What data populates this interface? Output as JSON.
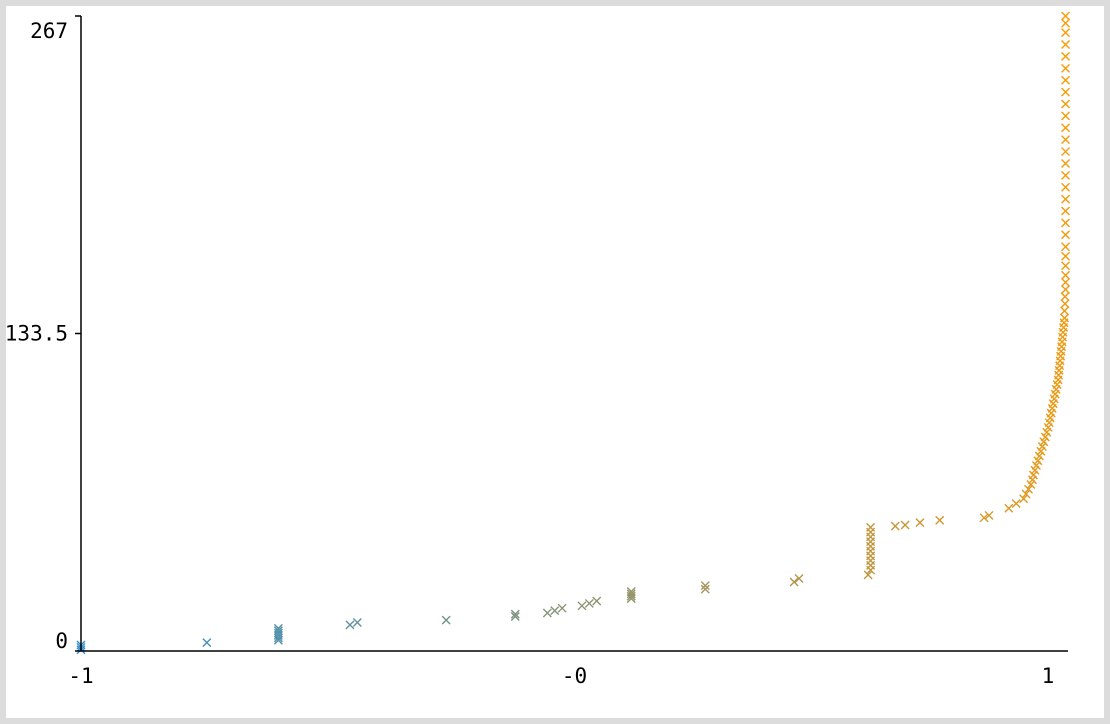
{
  "chart_data": {
    "type": "scatter",
    "title": "",
    "xlabel": "",
    "ylabel": "",
    "xlim": [
      -1,
      1
    ],
    "ylim": [
      0,
      267
    ],
    "x_ticks": [
      {
        "value": -1,
        "label": "-1"
      },
      {
        "value": 0,
        "label": "-0"
      },
      {
        "value": 1,
        "label": "1"
      }
    ],
    "y_ticks": [
      {
        "value": 0,
        "label": "0"
      },
      {
        "value": 133.5,
        "label": "133.5"
      },
      {
        "value": 267,
        "label": "267"
      }
    ],
    "grid": false,
    "legend": "none",
    "marker": "x",
    "color_start": "#2f8fcf",
    "color_end": "#ff9a00",
    "axis_color": "#000000",
    "points": [
      {
        "x": -1.0,
        "y": 0.5
      },
      {
        "x": -1.0,
        "y": 1.5
      },
      {
        "x": -1.0,
        "y": 2.5
      },
      {
        "x": -0.745,
        "y": 3.5
      },
      {
        "x": -0.6,
        "y": 4.5
      },
      {
        "x": -0.6,
        "y": 5.5
      },
      {
        "x": -0.6,
        "y": 6.5
      },
      {
        "x": -0.6,
        "y": 7.5
      },
      {
        "x": -0.6,
        "y": 8.5
      },
      {
        "x": -0.6,
        "y": 9.5
      },
      {
        "x": -0.455,
        "y": 11
      },
      {
        "x": -0.44,
        "y": 12
      },
      {
        "x": -0.26,
        "y": 13
      },
      {
        "x": -0.12,
        "y": 14.5
      },
      {
        "x": -0.12,
        "y": 15.5
      },
      {
        "x": -0.055,
        "y": 16
      },
      {
        "x": -0.04,
        "y": 17
      },
      {
        "x": -0.025,
        "y": 18
      },
      {
        "x": 0.015,
        "y": 19
      },
      {
        "x": 0.03,
        "y": 20
      },
      {
        "x": 0.045,
        "y": 21
      },
      {
        "x": 0.115,
        "y": 22
      },
      {
        "x": 0.115,
        "y": 23
      },
      {
        "x": 0.115,
        "y": 24
      },
      {
        "x": 0.115,
        "y": 25
      },
      {
        "x": 0.265,
        "y": 26
      },
      {
        "x": 0.265,
        "y": 27.5
      },
      {
        "x": 0.445,
        "y": 29
      },
      {
        "x": 0.455,
        "y": 30.5
      },
      {
        "x": 0.595,
        "y": 32
      },
      {
        "x": 0.6,
        "y": 34
      },
      {
        "x": 0.6,
        "y": 36
      },
      {
        "x": 0.6,
        "y": 38
      },
      {
        "x": 0.6,
        "y": 40
      },
      {
        "x": 0.6,
        "y": 42
      },
      {
        "x": 0.6,
        "y": 44
      },
      {
        "x": 0.6,
        "y": 46
      },
      {
        "x": 0.6,
        "y": 48
      },
      {
        "x": 0.6,
        "y": 50
      },
      {
        "x": 0.6,
        "y": 52
      },
      {
        "x": 0.65,
        "y": 52.5
      },
      {
        "x": 0.67,
        "y": 53
      },
      {
        "x": 0.7,
        "y": 54
      },
      {
        "x": 0.74,
        "y": 55
      },
      {
        "x": 0.83,
        "y": 56
      },
      {
        "x": 0.84,
        "y": 57
      },
      {
        "x": 0.88,
        "y": 60
      },
      {
        "x": 0.895,
        "y": 62
      },
      {
        "x": 0.91,
        "y": 64
      },
      {
        "x": 0.915,
        "y": 66
      },
      {
        "x": 0.92,
        "y": 68
      },
      {
        "x": 0.925,
        "y": 70
      },
      {
        "x": 0.928,
        "y": 72
      },
      {
        "x": 0.93,
        "y": 74
      },
      {
        "x": 0.933,
        "y": 76
      },
      {
        "x": 0.936,
        "y": 78
      },
      {
        "x": 0.939,
        "y": 80
      },
      {
        "x": 0.942,
        "y": 82
      },
      {
        "x": 0.945,
        "y": 84
      },
      {
        "x": 0.948,
        "y": 86
      },
      {
        "x": 0.951,
        "y": 88
      },
      {
        "x": 0.954,
        "y": 90
      },
      {
        "x": 0.957,
        "y": 92
      },
      {
        "x": 0.96,
        "y": 94
      },
      {
        "x": 0.962,
        "y": 96
      },
      {
        "x": 0.964,
        "y": 98
      },
      {
        "x": 0.966,
        "y": 100
      },
      {
        "x": 0.968,
        "y": 102
      },
      {
        "x": 0.97,
        "y": 104
      },
      {
        "x": 0.972,
        "y": 106
      },
      {
        "x": 0.974,
        "y": 108
      },
      {
        "x": 0.976,
        "y": 110
      },
      {
        "x": 0.978,
        "y": 112
      },
      {
        "x": 0.98,
        "y": 114
      },
      {
        "x": 0.981,
        "y": 116
      },
      {
        "x": 0.982,
        "y": 118
      },
      {
        "x": 0.983,
        "y": 120
      },
      {
        "x": 0.984,
        "y": 122
      },
      {
        "x": 0.985,
        "y": 124
      },
      {
        "x": 0.986,
        "y": 126
      },
      {
        "x": 0.987,
        "y": 128
      },
      {
        "x": 0.988,
        "y": 130
      },
      {
        "x": 0.989,
        "y": 132
      },
      {
        "x": 0.99,
        "y": 134
      },
      {
        "x": 0.991,
        "y": 136
      },
      {
        "x": 0.992,
        "y": 138
      },
      {
        "x": 0.993,
        "y": 140
      },
      {
        "x": 0.993,
        "y": 143
      },
      {
        "x": 0.994,
        "y": 146
      },
      {
        "x": 0.994,
        "y": 149
      },
      {
        "x": 0.995,
        "y": 152
      },
      {
        "x": 0.995,
        "y": 155
      },
      {
        "x": 0.995,
        "y": 158
      },
      {
        "x": 0.995,
        "y": 162
      },
      {
        "x": 0.995,
        "y": 166
      },
      {
        "x": 0.995,
        "y": 170
      },
      {
        "x": 0.995,
        "y": 175
      },
      {
        "x": 0.995,
        "y": 180
      },
      {
        "x": 0.995,
        "y": 185
      },
      {
        "x": 0.995,
        "y": 190
      },
      {
        "x": 0.995,
        "y": 195
      },
      {
        "x": 0.995,
        "y": 200
      },
      {
        "x": 0.995,
        "y": 205
      },
      {
        "x": 0.995,
        "y": 210
      },
      {
        "x": 0.995,
        "y": 215
      },
      {
        "x": 0.995,
        "y": 220
      },
      {
        "x": 0.995,
        "y": 225
      },
      {
        "x": 0.995,
        "y": 230
      },
      {
        "x": 0.995,
        "y": 235
      },
      {
        "x": 0.995,
        "y": 240
      },
      {
        "x": 0.995,
        "y": 245
      },
      {
        "x": 0.995,
        "y": 250
      },
      {
        "x": 0.995,
        "y": 255
      },
      {
        "x": 0.995,
        "y": 260
      },
      {
        "x": 0.995,
        "y": 264
      },
      {
        "x": 0.995,
        "y": 267
      }
    ]
  }
}
